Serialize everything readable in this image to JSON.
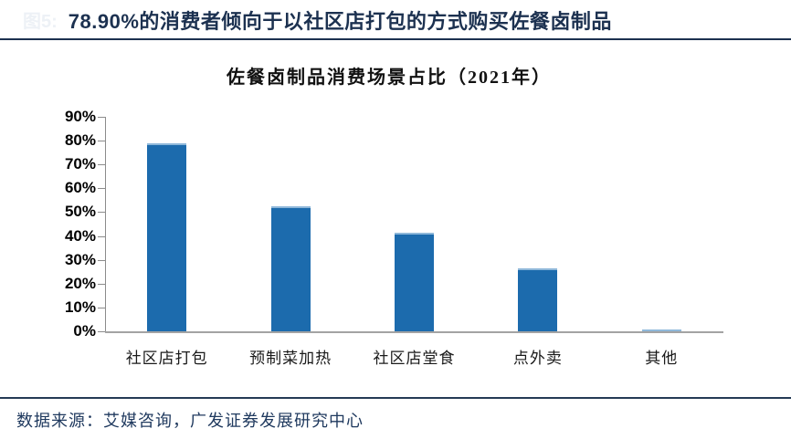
{
  "header": {
    "faint_prefix": "图5:",
    "title": "78.90%的消费者倾向于以社区店打包的方式购买佐餐卤制品"
  },
  "chart_data": {
    "type": "bar",
    "title": "佐餐卤制品消费场景占比（2021年）",
    "categories": [
      "社区店打包",
      "预制菜加热",
      "社区店堂食",
      "点外卖",
      "其他"
    ],
    "values": [
      78.9,
      52.3,
      41.3,
      26.5,
      0.7
    ],
    "unit": "%",
    "ylim": [
      0,
      90
    ],
    "ytick_step": 10,
    "grid": false,
    "legend": "none",
    "bar_color": "#1c6bad",
    "bar_top_edge_color": "#8fb8da",
    "axis_color": "#8c8c8c"
  },
  "footer": {
    "source": "数据来源：艾媒咨询，广发证券发展研究中心"
  },
  "colors": {
    "title_navy": "#1c3150",
    "rule_navy": "#243a55",
    "footer_navy": "#203a5f"
  }
}
